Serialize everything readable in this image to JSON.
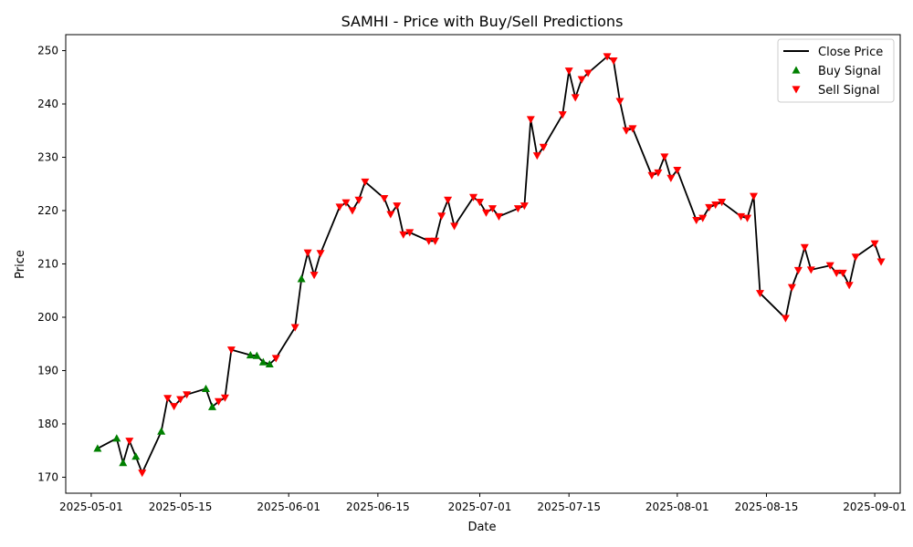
{
  "chart_data": {
    "type": "line",
    "title": "SAMHI - Price with Buy/Sell Predictions",
    "xlabel": "Date",
    "ylabel": "Price",
    "ylim": [
      167,
      253
    ],
    "xlim": [
      "2025-04-27",
      "2025-09-05"
    ],
    "grid": false,
    "legend_position": "top-right",
    "x_ticks": [
      "2025-05-01",
      "2025-05-15",
      "2025-06-01",
      "2025-06-15",
      "2025-07-01",
      "2025-07-15",
      "2025-08-01",
      "2025-08-15",
      "2025-09-01"
    ],
    "y_ticks": [
      170,
      180,
      190,
      200,
      210,
      220,
      230,
      240,
      250
    ],
    "colors": {
      "line": "#000000",
      "buy": "#008000",
      "sell": "#ff0000"
    },
    "series": [
      {
        "name": "Close Price",
        "kind": "line",
        "points": [
          [
            "2025-05-02",
            175.4
          ],
          [
            "2025-05-05",
            177.3
          ],
          [
            "2025-05-06",
            172.7
          ],
          [
            "2025-05-07",
            176.8
          ],
          [
            "2025-05-08",
            173.9
          ],
          [
            "2025-05-09",
            170.8
          ],
          [
            "2025-05-12",
            178.6
          ],
          [
            "2025-05-13",
            184.8
          ],
          [
            "2025-05-14",
            183.3
          ],
          [
            "2025-05-15",
            184.6
          ],
          [
            "2025-05-16",
            185.5
          ],
          [
            "2025-05-19",
            186.6
          ],
          [
            "2025-05-20",
            183.2
          ],
          [
            "2025-05-21",
            184.2
          ],
          [
            "2025-05-22",
            184.9
          ],
          [
            "2025-05-23",
            193.9
          ],
          [
            "2025-05-26",
            192.9
          ],
          [
            "2025-05-27",
            192.8
          ],
          [
            "2025-05-28",
            191.6
          ],
          [
            "2025-05-29",
            191.2
          ],
          [
            "2025-05-30",
            192.3
          ],
          [
            "2025-06-02",
            198.1
          ],
          [
            "2025-06-03",
            207.2
          ],
          [
            "2025-06-04",
            212.1
          ],
          [
            "2025-06-05",
            207.9
          ],
          [
            "2025-06-06",
            212.0
          ],
          [
            "2025-06-09",
            220.7
          ],
          [
            "2025-06-10",
            221.5
          ],
          [
            "2025-06-11",
            220.0
          ],
          [
            "2025-06-12",
            222.0
          ],
          [
            "2025-06-13",
            225.4
          ],
          [
            "2025-06-16",
            222.3
          ],
          [
            "2025-06-17",
            219.3
          ],
          [
            "2025-06-18",
            220.9
          ],
          [
            "2025-06-19",
            215.5
          ],
          [
            "2025-06-20",
            215.9
          ],
          [
            "2025-06-23",
            214.3
          ],
          [
            "2025-06-24",
            214.3
          ],
          [
            "2025-06-25",
            219.0
          ],
          [
            "2025-06-26",
            222.0
          ],
          [
            "2025-06-27",
            217.1
          ],
          [
            "2025-06-30",
            222.5
          ],
          [
            "2025-07-01",
            221.6
          ],
          [
            "2025-07-02",
            219.6
          ],
          [
            "2025-07-03",
            220.4
          ],
          [
            "2025-07-04",
            218.9
          ],
          [
            "2025-07-07",
            220.4
          ],
          [
            "2025-07-08",
            220.9
          ],
          [
            "2025-07-09",
            237.1
          ],
          [
            "2025-07-10",
            230.3
          ],
          [
            "2025-07-11",
            231.9
          ],
          [
            "2025-07-14",
            238.0
          ],
          [
            "2025-07-15",
            246.2
          ],
          [
            "2025-07-16",
            241.2
          ],
          [
            "2025-07-17",
            244.6
          ],
          [
            "2025-07-18",
            245.8
          ],
          [
            "2025-07-21",
            248.9
          ],
          [
            "2025-07-22",
            248.1
          ],
          [
            "2025-07-23",
            240.5
          ],
          [
            "2025-07-24",
            235.0
          ],
          [
            "2025-07-25",
            235.4
          ],
          [
            "2025-07-28",
            226.6
          ],
          [
            "2025-07-29",
            227.1
          ],
          [
            "2025-07-30",
            230.1
          ],
          [
            "2025-07-31",
            226.1
          ],
          [
            "2025-08-01",
            227.6
          ],
          [
            "2025-08-04",
            218.2
          ],
          [
            "2025-08-05",
            218.6
          ],
          [
            "2025-08-06",
            220.6
          ],
          [
            "2025-08-07",
            221.1
          ],
          [
            "2025-08-08",
            221.6
          ],
          [
            "2025-08-11",
            218.9
          ],
          [
            "2025-08-12",
            218.6
          ],
          [
            "2025-08-13",
            222.7
          ],
          [
            "2025-08-14",
            204.5
          ],
          [
            "2025-08-18",
            199.8
          ],
          [
            "2025-08-19",
            205.6
          ],
          [
            "2025-08-20",
            208.8
          ],
          [
            "2025-08-21",
            213.1
          ],
          [
            "2025-08-22",
            208.9
          ],
          [
            "2025-08-25",
            209.7
          ],
          [
            "2025-08-26",
            208.3
          ],
          [
            "2025-08-27",
            208.3
          ],
          [
            "2025-08-28",
            206.0
          ],
          [
            "2025-08-29",
            211.3
          ],
          [
            "2025-09-01",
            213.8
          ],
          [
            "2025-09-02",
            210.4
          ]
        ]
      },
      {
        "name": "Buy Signal",
        "kind": "scatter",
        "marker": "triangle-up",
        "points": [
          [
            "2025-05-02",
            175.4
          ],
          [
            "2025-05-05",
            177.3
          ],
          [
            "2025-05-06",
            172.7
          ],
          [
            "2025-05-08",
            173.9
          ],
          [
            "2025-05-12",
            178.6
          ],
          [
            "2025-05-19",
            186.6
          ],
          [
            "2025-05-20",
            183.2
          ],
          [
            "2025-05-26",
            192.9
          ],
          [
            "2025-05-27",
            192.8
          ],
          [
            "2025-05-28",
            191.6
          ],
          [
            "2025-05-29",
            191.2
          ],
          [
            "2025-06-03",
            207.2
          ]
        ]
      },
      {
        "name": "Sell Signal",
        "kind": "scatter",
        "marker": "triangle-down",
        "points": [
          [
            "2025-05-07",
            176.8
          ],
          [
            "2025-05-09",
            170.8
          ],
          [
            "2025-05-13",
            184.8
          ],
          [
            "2025-05-14",
            183.3
          ],
          [
            "2025-05-15",
            184.6
          ],
          [
            "2025-05-16",
            185.5
          ],
          [
            "2025-05-21",
            184.2
          ],
          [
            "2025-05-22",
            184.9
          ],
          [
            "2025-05-23",
            193.9
          ],
          [
            "2025-05-30",
            192.3
          ],
          [
            "2025-06-02",
            198.1
          ],
          [
            "2025-06-04",
            212.1
          ],
          [
            "2025-06-05",
            207.9
          ],
          [
            "2025-06-06",
            212.0
          ],
          [
            "2025-06-09",
            220.7
          ],
          [
            "2025-06-10",
            221.5
          ],
          [
            "2025-06-11",
            220.0
          ],
          [
            "2025-06-12",
            222.0
          ],
          [
            "2025-06-13",
            225.4
          ],
          [
            "2025-06-16",
            222.3
          ],
          [
            "2025-06-17",
            219.3
          ],
          [
            "2025-06-18",
            220.9
          ],
          [
            "2025-06-19",
            215.5
          ],
          [
            "2025-06-20",
            215.9
          ],
          [
            "2025-06-23",
            214.3
          ],
          [
            "2025-06-24",
            214.3
          ],
          [
            "2025-06-25",
            219.0
          ],
          [
            "2025-06-26",
            222.0
          ],
          [
            "2025-06-27",
            217.1
          ],
          [
            "2025-06-30",
            222.5
          ],
          [
            "2025-07-01",
            221.6
          ],
          [
            "2025-07-02",
            219.6
          ],
          [
            "2025-07-03",
            220.4
          ],
          [
            "2025-07-04",
            218.9
          ],
          [
            "2025-07-07",
            220.4
          ],
          [
            "2025-07-08",
            220.9
          ],
          [
            "2025-07-09",
            237.1
          ],
          [
            "2025-07-10",
            230.3
          ],
          [
            "2025-07-11",
            231.9
          ],
          [
            "2025-07-14",
            238.0
          ],
          [
            "2025-07-15",
            246.2
          ],
          [
            "2025-07-16",
            241.2
          ],
          [
            "2025-07-17",
            244.6
          ],
          [
            "2025-07-18",
            245.8
          ],
          [
            "2025-07-21",
            248.9
          ],
          [
            "2025-07-22",
            248.1
          ],
          [
            "2025-07-23",
            240.5
          ],
          [
            "2025-07-24",
            235.0
          ],
          [
            "2025-07-25",
            235.4
          ],
          [
            "2025-07-28",
            226.6
          ],
          [
            "2025-07-29",
            227.1
          ],
          [
            "2025-07-30",
            230.1
          ],
          [
            "2025-07-31",
            226.1
          ],
          [
            "2025-08-01",
            227.6
          ],
          [
            "2025-08-04",
            218.2
          ],
          [
            "2025-08-05",
            218.6
          ],
          [
            "2025-08-06",
            220.6
          ],
          [
            "2025-08-07",
            221.1
          ],
          [
            "2025-08-08",
            221.6
          ],
          [
            "2025-08-11",
            218.9
          ],
          [
            "2025-08-12",
            218.6
          ],
          [
            "2025-08-13",
            222.7
          ],
          [
            "2025-08-14",
            204.5
          ],
          [
            "2025-08-18",
            199.8
          ],
          [
            "2025-08-19",
            205.6
          ],
          [
            "2025-08-20",
            208.8
          ],
          [
            "2025-08-21",
            213.1
          ],
          [
            "2025-08-22",
            208.9
          ],
          [
            "2025-08-25",
            209.7
          ],
          [
            "2025-08-26",
            208.3
          ],
          [
            "2025-08-27",
            208.3
          ],
          [
            "2025-08-28",
            206.0
          ],
          [
            "2025-08-29",
            211.3
          ],
          [
            "2025-09-01",
            213.8
          ],
          [
            "2025-09-02",
            210.4
          ]
        ]
      }
    ]
  }
}
